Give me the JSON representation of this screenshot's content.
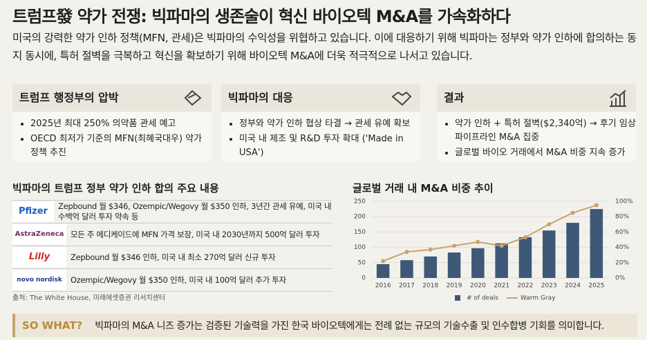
{
  "title": "트럼프發 약가 전쟁: 빅파마의 생존술이 혁신 바이오텍 M&A를 가속화하다",
  "subtitle": "미국의 강력한 약가 인하 정책(MFN, 관세)은 빅파마의 수익성을 위협하고 있습니다. 이에 대응하기 위해 빅파마는 정부와 약가 인하에 합의하는 동지 동시에, 특허 절벽을 극복하고 혁신을 확보하기 위해 바이오텍 M&A에 더욱 적극적으로 나서고 있습니다.",
  "cards": [
    {
      "title": "트럼프 행정부의 압박",
      "bullets": [
        "2025년 최대 250% 의약품 관세 예고",
        "OECD 최저가 기준의 MFN(최혜국대우) 약가 정책 추진"
      ]
    },
    {
      "title": "빅파마의 대응",
      "bullets": [
        "정부와 약가 인하 협상 타결 → 관세 유예 확보",
        "미국 내 제조 및 R&D 투자 확대 ('Made in USA')"
      ]
    },
    {
      "title": "결과",
      "bullets": [
        "약가 인하 + 특허 절벽($2,340억) → 후기 임상 파이프라인 M&A 집중",
        "글로벌 바이오 거래에서 M&A 비중 지속 증가"
      ]
    }
  ],
  "table": {
    "title": "빅파마의 트럼프 정부 약가 인하 합의 주요 내용",
    "rows": [
      {
        "company": "Pfizer",
        "text": "Zepbound 월 $346, Ozempic/Wegovy 월 $350 인하, 3년간 관세 유예, 미국 내 수백억 달러 투자 약속 등"
      },
      {
        "company": "AstraZeneca",
        "text": "모든 주 메디케이드에 MFN 가격 보장, 미국 내 2030년까지 500억 달러 투자"
      },
      {
        "company": "Lilly",
        "text": "Zepbound 월 $346 인하, 미국 내 최소 270억 달러 신규 투자"
      },
      {
        "company": "novo nordisk",
        "text": "Ozempic/Wegovy 월 $350 인하, 미국 내 100억 달러 추가 투자"
      }
    ],
    "source": "출처: The White House, 미래에셋증권 리서치센터"
  },
  "chart_data": {
    "type": "bar-line",
    "title": "글로벌 거래 내 M&A 비중 추이",
    "categories": [
      "2016",
      "2017",
      "2018",
      "2019",
      "2020",
      "2021",
      "2022",
      "2023",
      "2024",
      "2025"
    ],
    "series": [
      {
        "name": "# of deals",
        "color": "#3e5878",
        "values": [
          45,
          58,
          70,
          83,
          97,
          113,
          133,
          155,
          180,
          225
        ]
      },
      {
        "name": "Warm Gray",
        "color": "#c9a36b",
        "axis": "y2",
        "values": [
          22,
          34,
          37,
          42,
          47,
          42,
          53,
          70,
          85,
          95
        ]
      }
    ],
    "ylim": [
      0,
      250
    ],
    "yticks": [
      0,
      50,
      100,
      150,
      200,
      250
    ],
    "y2lim": [
      0,
      100
    ],
    "y2ticks": [
      {
        "value": 0,
        "label": "0%"
      },
      {
        "value": 20,
        "label": "20%"
      },
      {
        "value": 40,
        "label": "40%"
      },
      {
        "value": 60,
        "label": "60%"
      },
      {
        "value": 80,
        "label": "80%"
      },
      {
        "value": 100,
        "label": "100%"
      }
    ]
  },
  "footer": {
    "label": "SO WHAT?",
    "text": "빅파마의 M&A 니즈 증가는 검증된 기술력을 가진 한국 바이오텍에게는 전례 없는 규모의 기술수출 및 인수합병 기회를 의미합니다."
  }
}
